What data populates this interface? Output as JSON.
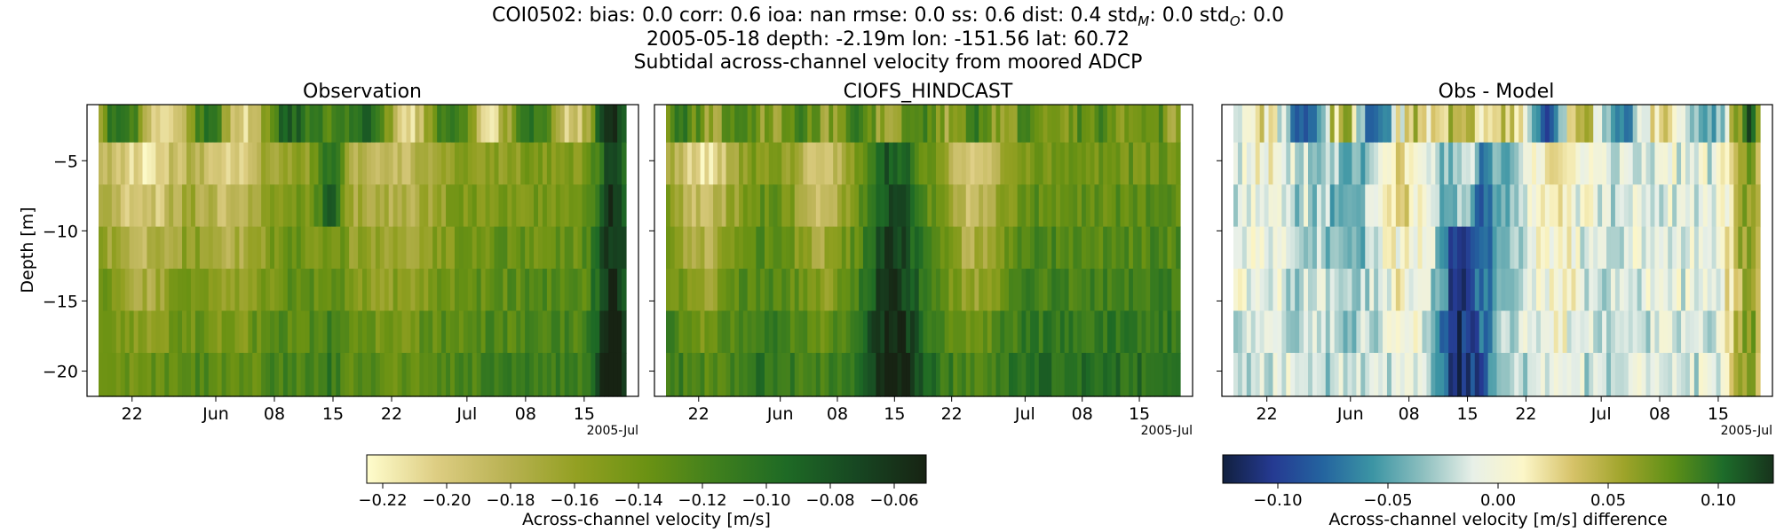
{
  "figure": {
    "title_metrics": "COI0502: bias: 0.0  corr: 0.6  ioa: nan  rmse: 0.0  ss: 0.6  dist: 0.4  std",
    "title_metrics_std_m_sub": "M",
    "title_metrics_mid": ": 0.0  std",
    "title_metrics_std_o_sub": "O",
    "title_metrics_end": ": 0.0",
    "title_line2": "2005-05-18 depth: -2.19m lon: -151.56 lat: 60.72",
    "title_line3": "Subtidal across-channel velocity from moored ADCP"
  },
  "chart_data": [
    {
      "type": "heatmap",
      "title": "Observation",
      "ylabel": "Depth [m]",
      "x_tick_labels": [
        "22",
        "Jun",
        "08",
        "15",
        "22",
        "Jul",
        "08",
        "15"
      ],
      "x_offset_label": "2005-Jul",
      "y_ticks": [
        -5,
        -10,
        -15,
        -20
      ],
      "y_tick_labels": [
        "−5",
        "−10",
        "−15",
        "−20"
      ],
      "depth_bins_m": [
        -2.19,
        -5.2,
        -8.2,
        -11.2,
        -14.2,
        -17.2,
        -20.2
      ],
      "xlim": [
        "2005-05-18",
        "2005-07-20"
      ],
      "ylim": [
        -21.8,
        -1.0
      ],
      "colormap": "speed (light yellow to dark green)",
      "colorbar_label": "Across-channel velocity [m/s]",
      "colorbar_range": [
        -0.225,
        -0.05
      ],
      "colorbar_tick_labels": [
        "−0.22",
        "−0.20",
        "−0.18",
        "−0.16",
        "−0.14",
        "−0.12",
        "−0.10",
        "−0.08",
        "−0.06"
      ]
    },
    {
      "type": "heatmap",
      "title": "CIOFS_HINDCAST",
      "x_tick_labels": [
        "22",
        "Jun",
        "08",
        "15",
        "22",
        "Jul",
        "08",
        "15"
      ],
      "x_offset_label": "2005-Jul",
      "depth_bins_m": [
        -2.19,
        -5.2,
        -8.2,
        -11.2,
        -14.2,
        -17.2,
        -20.2
      ],
      "colormap": "speed (light yellow to dark green)",
      "colorbar_range": [
        -0.225,
        -0.05
      ]
    },
    {
      "type": "heatmap",
      "title": "Obs - Model",
      "x_tick_labels": [
        "22",
        "Jun",
        "08",
        "15",
        "22",
        "Jul",
        "08",
        "15"
      ],
      "x_offset_label": "2005-Jul",
      "depth_bins_m": [
        -2.19,
        -5.2,
        -8.2,
        -11.2,
        -14.2,
        -17.2,
        -20.2
      ],
      "colormap": "delta (blue - white - yellow - green)",
      "colorbar_label": "Across-channel velocity [m/s] difference",
      "colorbar_range": [
        -0.125,
        0.125
      ],
      "colorbar_tick_labels": [
        "−0.10",
        "−0.05",
        "0.00",
        "0.05",
        "0.10"
      ]
    }
  ],
  "colors": {
    "speed": [
      "#fffdcd",
      "#ddcd82",
      "#b9b253",
      "#93a022",
      "#6b9213",
      "#3f7f1d",
      "#1e6a25",
      "#174722",
      "#172313"
    ],
    "delta": [
      "#11203f",
      "#253a92",
      "#24649f",
      "#3c95a4",
      "#8dbfbf",
      "#e8f0e8",
      "#fcf6c8",
      "#d6c268",
      "#9fa42a",
      "#5d8f17",
      "#1d6c2a",
      "#17331c"
    ]
  }
}
